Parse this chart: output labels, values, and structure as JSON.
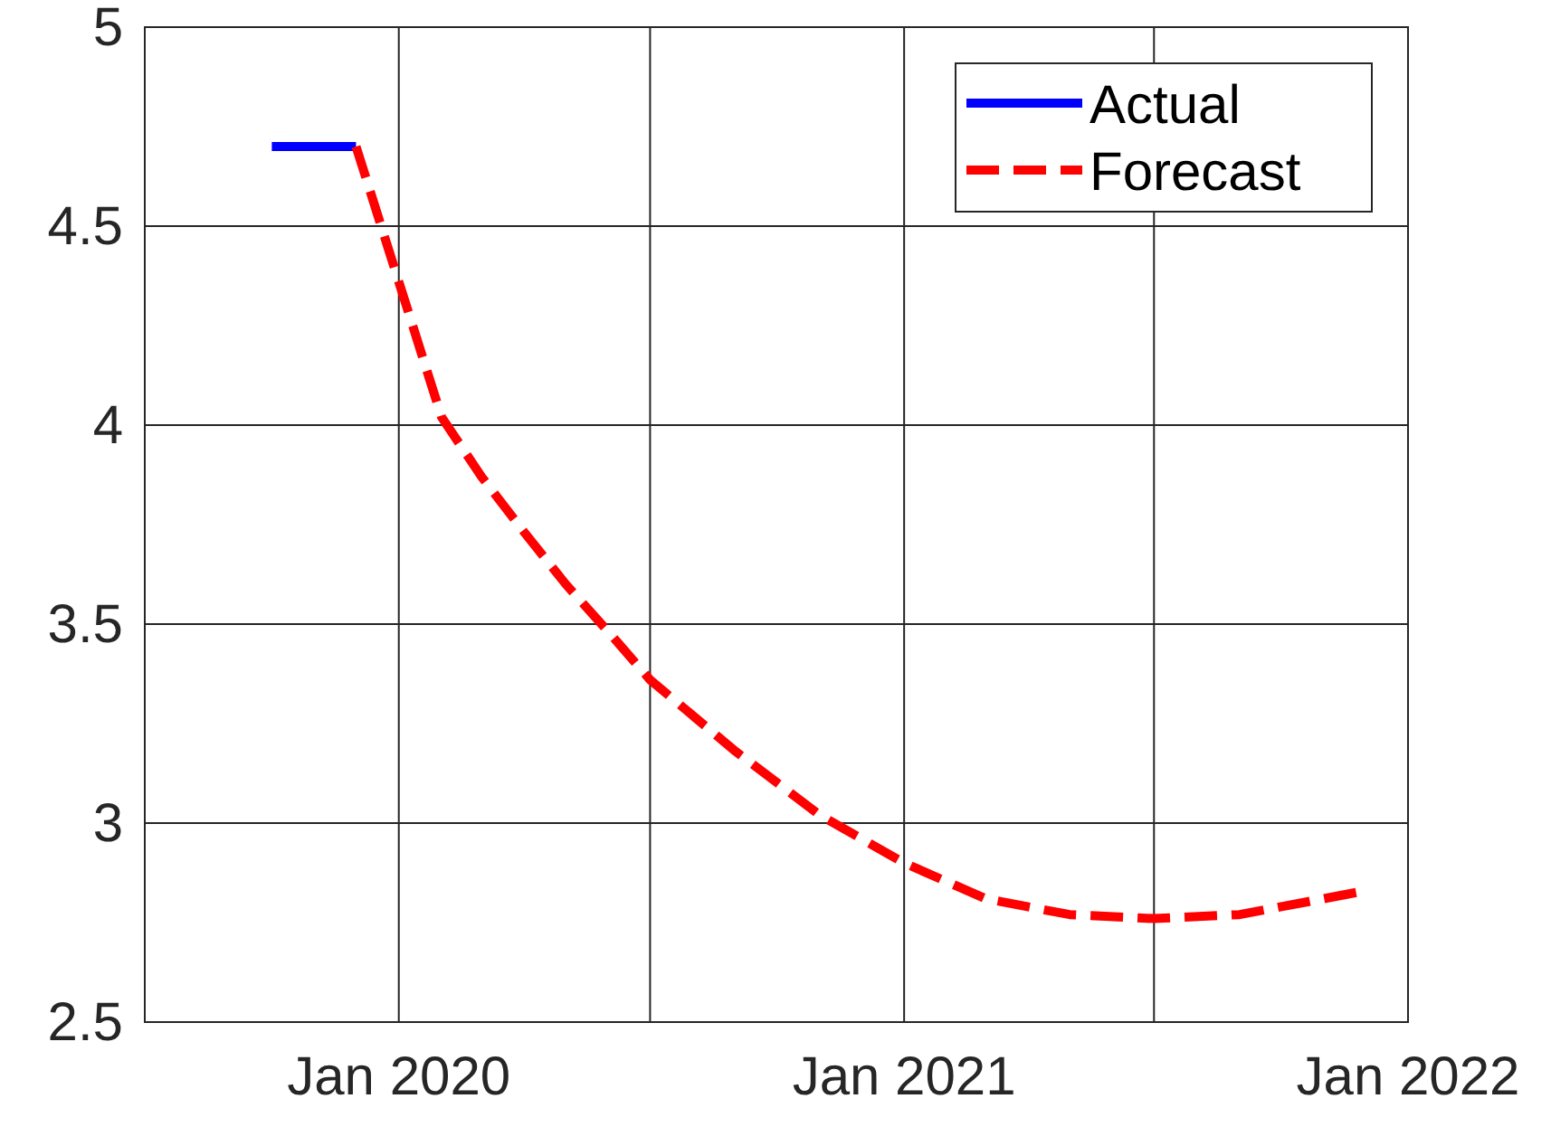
{
  "chart_data": {
    "type": "line",
    "xlim": [
      "2019-07",
      "2022-01"
    ],
    "xticks": [
      {
        "value": "2020-01",
        "label": "Jan 2020"
      },
      {
        "value": "2020-07",
        "label": null
      },
      {
        "value": "2021-01",
        "label": "Jan 2021"
      },
      {
        "value": "2021-07",
        "label": null
      },
      {
        "value": "2022-01",
        "label": "Jan 2022"
      }
    ],
    "ylim": [
      2.5,
      5
    ],
    "yticks": [
      2.5,
      3,
      3.5,
      4,
      4.5,
      5
    ],
    "grid": true,
    "legend": "top right",
    "series": [
      {
        "name": "Actual",
        "color": "#0000ff",
        "line_style": "solid",
        "x": [
          "2019-10",
          "2019-11",
          "2019-12"
        ],
        "values": [
          4.7,
          4.7,
          4.7
        ]
      },
      {
        "name": "Forecast",
        "color": "#ff0000",
        "line_style": "dashed",
        "x": [
          "2019-12",
          "2020-02",
          "2020-03",
          "2020-04",
          "2020-05",
          "2020-06",
          "2020-07",
          "2020-09",
          "2020-11",
          "2021-01",
          "2021-03",
          "2021-05",
          "2021-07",
          "2021-09",
          "2021-11",
          "2021-12"
        ],
        "values": [
          4.7,
          4.02,
          3.87,
          3.73,
          3.6,
          3.48,
          3.36,
          3.18,
          3.02,
          2.9,
          2.81,
          2.77,
          2.76,
          2.77,
          2.81,
          2.83
        ]
      }
    ]
  }
}
